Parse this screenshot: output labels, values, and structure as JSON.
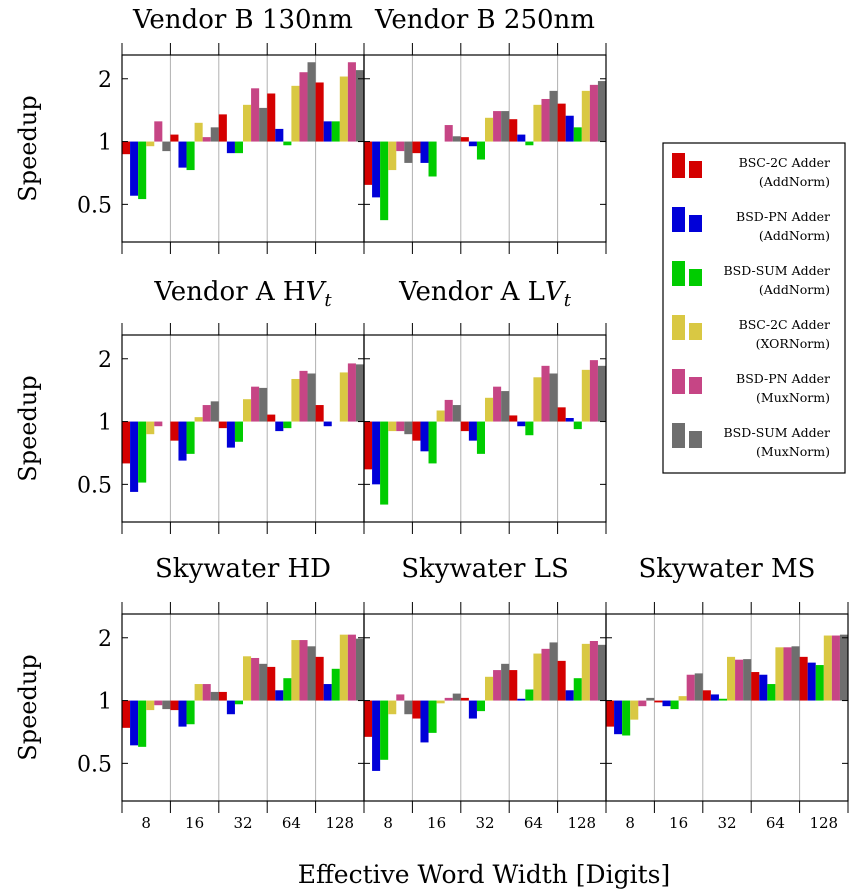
{
  "chart_data": {
    "type": "bar",
    "y_scale": "log",
    "ylabel": "Speedup",
    "xlabel": "Effective Word Width [Digits]",
    "yticks": [
      {
        "value": 0.5,
        "label": "0.5"
      },
      {
        "value": 1,
        "label": "1"
      },
      {
        "value": 2,
        "label": "2"
      }
    ],
    "ylim": [
      0.33,
      2.6
    ],
    "categories": [
      "8",
      "16",
      "32",
      "64",
      "128"
    ],
    "legend_position": "right",
    "legend": [
      {
        "name": "BSC-2C Adder",
        "sub": "(AddNorm)",
        "color": "#d40000"
      },
      {
        "name": "BSD-PN Adder",
        "sub": "(AddNorm)",
        "color": "#0000d8"
      },
      {
        "name": "BSD-SUM Adder",
        "sub": "(AddNorm)",
        "color": "#00cc00"
      },
      {
        "name": "BSC-2C Adder",
        "sub": "(XORNorm)",
        "color": "#d9c843"
      },
      {
        "name": "BSD-PN Adder",
        "sub": "(MuxNorm)",
        "color": "#c64585"
      },
      {
        "name": "BSD-SUM Adder",
        "sub": "(MuxNorm)",
        "color": "#6e6e6e"
      }
    ],
    "panels": [
      {
        "title": "Vendor B 130nm",
        "values": [
          [
            0.87,
            0.55,
            0.53,
            0.95,
            1.25,
            0.9
          ],
          [
            1.08,
            0.75,
            0.73,
            1.23,
            1.05,
            1.17
          ],
          [
            1.35,
            0.88,
            0.88,
            1.5,
            1.8,
            1.45
          ],
          [
            1.7,
            1.15,
            0.96,
            1.85,
            2.15,
            2.4
          ],
          [
            1.92,
            1.25,
            1.25,
            2.05,
            2.4,
            2.2
          ]
        ]
      },
      {
        "title": "Vendor B 250nm",
        "values": [
          [
            0.62,
            0.54,
            0.42,
            0.73,
            0.9,
            0.79
          ],
          [
            0.88,
            0.79,
            0.68,
            1.0,
            1.2,
            1.06
          ],
          [
            1.05,
            0.95,
            0.82,
            1.3,
            1.4,
            1.4
          ],
          [
            1.28,
            1.08,
            0.96,
            1.5,
            1.6,
            1.75
          ],
          [
            1.52,
            1.33,
            1.17,
            1.75,
            1.87,
            1.95
          ]
        ]
      },
      {
        "title": "Vendor A H",
        "title_var": "V",
        "title_sub": "t",
        "values": [
          [
            0.63,
            0.46,
            0.51,
            0.87,
            0.95,
            1.0
          ],
          [
            0.81,
            0.65,
            0.7,
            1.05,
            1.2,
            1.25
          ],
          [
            0.93,
            0.75,
            0.8,
            1.28,
            1.47,
            1.45
          ],
          [
            1.08,
            0.9,
            0.93,
            1.6,
            1.75,
            1.7
          ],
          [
            1.2,
            0.95,
            1.0,
            1.72,
            1.9,
            1.88
          ]
        ]
      },
      {
        "title": "Vendor A L",
        "title_var": "V",
        "title_sub": "t",
        "values": [
          [
            0.59,
            0.5,
            0.4,
            0.9,
            0.9,
            0.87
          ],
          [
            0.81,
            0.72,
            0.63,
            1.13,
            1.27,
            1.2
          ],
          [
            0.9,
            0.81,
            0.7,
            1.3,
            1.47,
            1.4
          ],
          [
            1.07,
            0.95,
            0.86,
            1.63,
            1.85,
            1.7
          ],
          [
            1.17,
            1.04,
            0.92,
            1.77,
            1.97,
            1.85
          ]
        ]
      },
      {
        "title": "Skywater HD",
        "values": [
          [
            0.74,
            0.61,
            0.6,
            0.9,
            0.95,
            0.91
          ],
          [
            0.9,
            0.75,
            0.77,
            1.2,
            1.2,
            1.1
          ],
          [
            1.1,
            0.86,
            0.96,
            1.63,
            1.6,
            1.5
          ],
          [
            1.45,
            1.12,
            1.28,
            1.95,
            1.95,
            1.82
          ],
          [
            1.62,
            1.2,
            1.42,
            2.07,
            2.07,
            1.98
          ]
        ]
      },
      {
        "title": "Skywater LS",
        "values": [
          [
            0.67,
            0.46,
            0.52,
            0.86,
            1.07,
            0.86
          ],
          [
            0.82,
            0.63,
            0.7,
            0.97,
            1.03,
            1.08
          ],
          [
            1.03,
            0.82,
            0.89,
            1.3,
            1.4,
            1.5
          ],
          [
            1.4,
            1.02,
            1.13,
            1.68,
            1.77,
            1.9
          ],
          [
            1.55,
            1.12,
            1.28,
            1.87,
            1.93,
            1.85
          ]
        ]
      },
      {
        "title": "Skywater MS",
        "values": [
          [
            0.75,
            0.69,
            0.68,
            0.81,
            0.94,
            1.03
          ],
          [
            0.98,
            0.94,
            0.91,
            1.05,
            1.33,
            1.35
          ],
          [
            1.12,
            1.07,
            1.02,
            1.62,
            1.57,
            1.58
          ],
          [
            1.37,
            1.33,
            1.2,
            1.8,
            1.8,
            1.82
          ],
          [
            1.62,
            1.52,
            1.48,
            2.05,
            2.05,
            2.07
          ]
        ]
      }
    ]
  }
}
